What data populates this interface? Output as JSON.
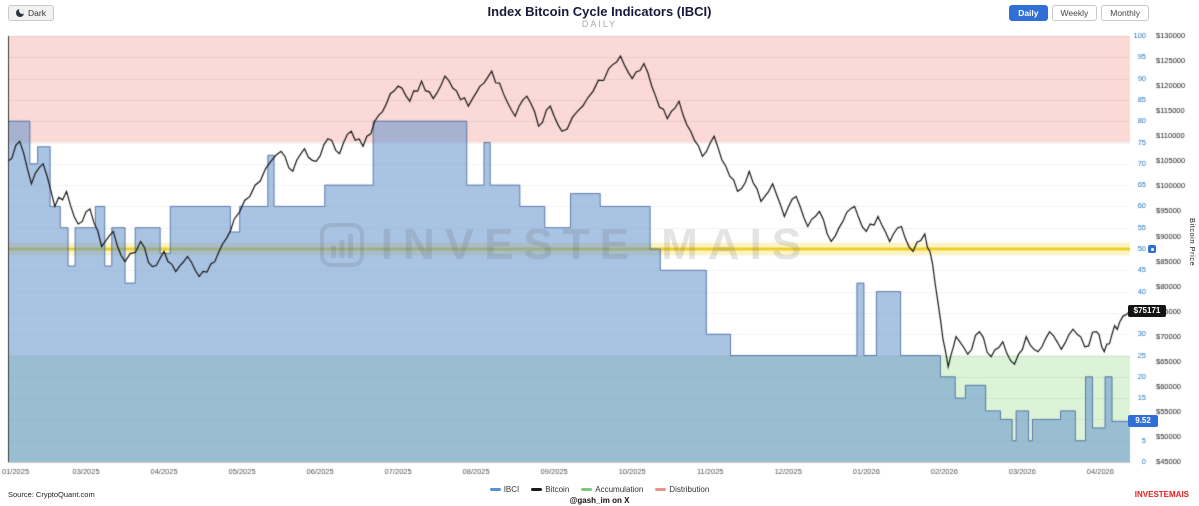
{
  "header": {
    "theme_toggle": "Dark",
    "title": "Index Bitcoin Cycle Indicators (IBCI)",
    "subtitle": "DAILY",
    "period_buttons": [
      {
        "label": "Daily",
        "active": true
      },
      {
        "label": "Weekly",
        "active": false
      },
      {
        "label": "Monthly",
        "active": false
      }
    ]
  },
  "watermark": "INVESTE MAIS",
  "footer": {
    "source": "Source: CryptoQuant.com",
    "handle": "@gash_im on X",
    "brand": "INVESTEMAIS"
  },
  "chart_data": {
    "type": "line+step-area",
    "title": "Index Bitcoin Cycle Indicators (IBCI)",
    "subtitle": "DAILY",
    "x_ticks": [
      "01/2025",
      "03/2025",
      "04/2025",
      "05/2025",
      "06/2025",
      "07/2025",
      "08/2025",
      "09/2025",
      "10/2025",
      "11/2025",
      "12/2025",
      "01/2026",
      "02/2026",
      "03/2026",
      "04/2026"
    ],
    "left_axis": {
      "min": 0,
      "max": 100,
      "step": 5,
      "color": "#2878be"
    },
    "right_axis": {
      "title": "Bitcoin Price",
      "min": 45000,
      "max": 130000,
      "step": 5000,
      "prefix": "$"
    },
    "zones": [
      {
        "label": "Distribution",
        "from": 75,
        "to": 100,
        "color": "#fad9d6"
      },
      {
        "label": "Accumulation",
        "from": 0,
        "to": 25,
        "color": "#dcf3d8"
      }
    ],
    "threshold": {
      "value": 50,
      "label": "50",
      "line_color": "rgba(238,203,18,0.9)",
      "band": [
        48.5,
        51.5
      ],
      "band_color": "#fbf4c8"
    },
    "series": [
      {
        "name": "IBCI",
        "type": "step_area",
        "color": "rgba(70,105,160,0.85)",
        "fill": "rgba(99,146,204,0.55)",
        "last_label": "9.52",
        "last_value": 9.52,
        "points": [
          [
            0,
            80
          ],
          [
            0.28,
            70
          ],
          [
            0.38,
            74
          ],
          [
            0.54,
            60
          ],
          [
            0.67,
            55
          ],
          [
            0.77,
            46
          ],
          [
            0.86,
            55
          ],
          [
            1.12,
            60
          ],
          [
            1.24,
            46
          ],
          [
            1.33,
            55
          ],
          [
            1.5,
            42
          ],
          [
            1.63,
            55
          ],
          [
            1.95,
            49
          ],
          [
            2.08,
            60
          ],
          [
            2.85,
            54
          ],
          [
            2.97,
            60
          ],
          [
            3.33,
            72
          ],
          [
            3.41,
            60
          ],
          [
            4.06,
            65
          ],
          [
            4.68,
            80
          ],
          [
            5.88,
            65
          ],
          [
            6.1,
            75
          ],
          [
            6.18,
            65
          ],
          [
            6.56,
            60
          ],
          [
            6.88,
            55
          ],
          [
            7.21,
            63
          ],
          [
            7.59,
            60
          ],
          [
            8.23,
            50
          ],
          [
            8.36,
            45
          ],
          [
            8.95,
            30
          ],
          [
            9.26,
            25
          ],
          [
            10.88,
            42
          ],
          [
            10.97,
            25
          ],
          [
            11.13,
            40
          ],
          [
            11.44,
            25
          ],
          [
            11.95,
            20
          ],
          [
            12.14,
            15
          ],
          [
            12.27,
            18
          ],
          [
            12.53,
            12
          ],
          [
            12.72,
            10
          ],
          [
            12.87,
            5
          ],
          [
            12.92,
            12
          ],
          [
            13.08,
            5
          ],
          [
            13.13,
            10
          ],
          [
            13.49,
            12
          ],
          [
            13.68,
            5
          ],
          [
            13.81,
            20
          ],
          [
            13.9,
            8
          ],
          [
            14.06,
            20
          ],
          [
            14.15,
            9.52
          ]
        ]
      },
      {
        "name": "Bitcoin",
        "type": "line",
        "color": "#161616",
        "last_label": "$75171",
        "last_value": 75171,
        "points": [
          [
            0,
            105000
          ],
          [
            0.15,
            109000
          ],
          [
            0.3,
            100500
          ],
          [
            0.45,
            104500
          ],
          [
            0.6,
            96000
          ],
          [
            0.75,
            99000
          ],
          [
            0.9,
            92500
          ],
          [
            1.05,
            95500
          ],
          [
            1.2,
            88000
          ],
          [
            1.35,
            91000
          ],
          [
            1.5,
            85000
          ],
          [
            1.7,
            89000
          ],
          [
            1.85,
            84000
          ],
          [
            2,
            87000
          ],
          [
            2.15,
            83000
          ],
          [
            2.3,
            86000
          ],
          [
            2.45,
            82000
          ],
          [
            2.6,
            84500
          ],
          [
            2.75,
            88500
          ],
          [
            2.9,
            93500
          ],
          [
            3.1,
            98000
          ],
          [
            3.3,
            103500
          ],
          [
            3.5,
            107000
          ],
          [
            3.65,
            103000
          ],
          [
            3.8,
            107500
          ],
          [
            3.95,
            105000
          ],
          [
            4.1,
            109500
          ],
          [
            4.25,
            106500
          ],
          [
            4.4,
            111000
          ],
          [
            4.55,
            108000
          ],
          [
            4.7,
            113000
          ],
          [
            4.85,
            116500
          ],
          [
            5,
            120000
          ],
          [
            5.15,
            117000
          ],
          [
            5.3,
            121000
          ],
          [
            5.45,
            117500
          ],
          [
            5.6,
            122000
          ],
          [
            5.75,
            119000
          ],
          [
            5.9,
            116000
          ],
          [
            6.05,
            120000
          ],
          [
            6.2,
            123000
          ],
          [
            6.35,
            118500
          ],
          [
            6.5,
            114000
          ],
          [
            6.65,
            118000
          ],
          [
            6.8,
            112000
          ],
          [
            6.95,
            116000
          ],
          [
            7.1,
            111000
          ],
          [
            7.3,
            115000
          ],
          [
            7.5,
            119000
          ],
          [
            7.7,
            123500
          ],
          [
            7.85,
            126000
          ],
          [
            8,
            121500
          ],
          [
            8.15,
            124500
          ],
          [
            8.3,
            118000
          ],
          [
            8.45,
            113500
          ],
          [
            8.6,
            117000
          ],
          [
            8.75,
            111000
          ],
          [
            8.9,
            106000
          ],
          [
            9.05,
            110000
          ],
          [
            9.2,
            104000
          ],
          [
            9.35,
            99000
          ],
          [
            9.5,
            103000
          ],
          [
            9.65,
            97000
          ],
          [
            9.8,
            100500
          ],
          [
            9.95,
            94000
          ],
          [
            10.1,
            98000
          ],
          [
            10.25,
            92000
          ],
          [
            10.4,
            95000
          ],
          [
            10.55,
            89000
          ],
          [
            10.7,
            93000
          ],
          [
            10.85,
            96000
          ],
          [
            11,
            91000
          ],
          [
            11.15,
            94000
          ],
          [
            11.3,
            89000
          ],
          [
            11.45,
            92000
          ],
          [
            11.6,
            87000
          ],
          [
            11.75,
            90500
          ],
          [
            11.85,
            84500
          ],
          [
            11.95,
            73500
          ],
          [
            12.05,
            64000
          ],
          [
            12.15,
            70000
          ],
          [
            12.3,
            66500
          ],
          [
            12.45,
            71000
          ],
          [
            12.6,
            66000
          ],
          [
            12.75,
            69000
          ],
          [
            12.9,
            64500
          ],
          [
            13.05,
            70000
          ],
          [
            13.2,
            67000
          ],
          [
            13.35,
            71000
          ],
          [
            13.5,
            67500
          ],
          [
            13.65,
            71500
          ],
          [
            13.8,
            68000
          ],
          [
            13.95,
            71000
          ],
          [
            14.05,
            67000
          ],
          [
            14.15,
            70500
          ],
          [
            14.25,
            73000
          ],
          [
            14.38,
            75171
          ]
        ]
      }
    ],
    "legend": [
      {
        "label": "IBCI",
        "color": "#5b8fd6"
      },
      {
        "label": "Bitcoin",
        "color": "#1a1a1a"
      },
      {
        "label": "Accumulation",
        "color": "#7fc97a"
      },
      {
        "label": "Distribution",
        "color": "#f08f88"
      }
    ]
  }
}
